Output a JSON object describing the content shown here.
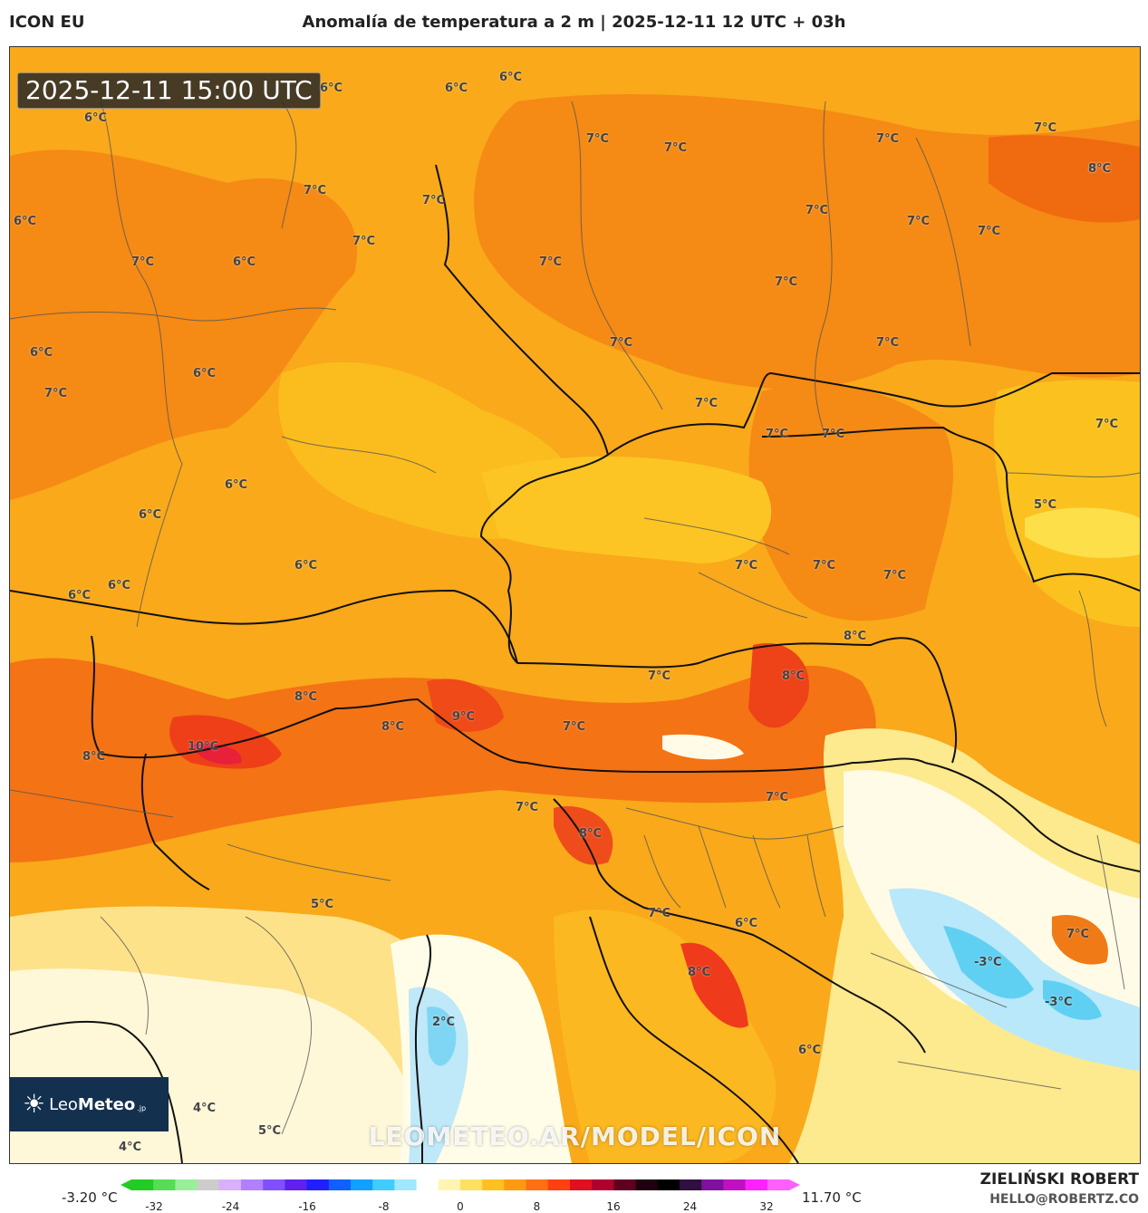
{
  "header": {
    "model": "ICON EU",
    "title": "Anomalía de temperatura a 2 m | 2025-12-11 12 UTC + 03h"
  },
  "map": {
    "timestamp": "2025-12-11 15:00 UTC",
    "temperature_labels": [
      "6°C",
      "6°C",
      "6°C",
      "6°C",
      "7°C",
      "7°C",
      "7°C",
      "7°C",
      "6°C",
      "7°C",
      "7°C",
      "6°C",
      "7°C",
      "7°C",
      "7°C",
      "7°C",
      "8°C",
      "7°C",
      "7°C",
      "6°C",
      "7°C",
      "7°C",
      "6°C",
      "7°C",
      "7°C",
      "7°C",
      "7°C",
      "7°C",
      "7°C",
      "5°C",
      "6°C",
      "6°C",
      "6°C",
      "6°C",
      "6°C",
      "6°C",
      "7°C",
      "7°C",
      "7°C",
      "8°C",
      "7°C",
      "8°C",
      "8°C",
      "8°C",
      "9°C",
      "7°C",
      "10°C",
      "8°C",
      "7°C",
      "7°C",
      "8°C",
      "5°C",
      "7°C",
      "6°C",
      "7°C",
      "-3°C",
      "-3°C",
      "8°C",
      "6°C",
      "2°C",
      "4°C",
      "5°C",
      "4°C"
    ],
    "watermark": "LEOMETEO.AR/MODEL/ICON",
    "logo": {
      "name_light": "Leo",
      "name_bold": "Meteo",
      "suffix": ".jp"
    }
  },
  "legend": {
    "min_label": "-3.20 °C",
    "max_label": "11.70 °C",
    "ticks": [
      "-32",
      "-24",
      "-16",
      "-8",
      "0",
      "8",
      "16",
      "24",
      "32"
    ],
    "colors": [
      "#22cc22",
      "#55dd55",
      "#99ee99",
      "#cccccc",
      "#d8b0ff",
      "#b080ff",
      "#8050ff",
      "#6020ee",
      "#2020ff",
      "#1060ff",
      "#10a0ff",
      "#40ccff",
      "#a0e8ff",
      "#ffffff",
      "#fff5b0",
      "#ffe060",
      "#ffc020",
      "#ff9a10",
      "#ff7010",
      "#ff4010",
      "#e01020",
      "#b00030",
      "#600020",
      "#200010",
      "#000000",
      "#301040",
      "#8010a0",
      "#c010c0",
      "#ff20ff",
      "#ff60ff"
    ]
  },
  "credits": {
    "author": "ZIELIŃSKI ROBERT",
    "email": "HELLO@ROBERTZ.CO"
  }
}
